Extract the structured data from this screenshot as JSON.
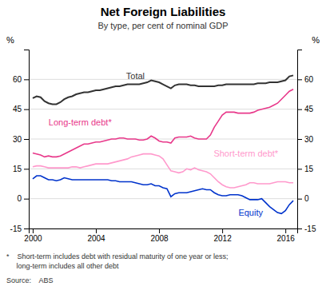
{
  "chart_data": {
    "type": "line",
    "title": "Net Foreign Liabilities",
    "subtitle": "By type, per cent of nominal GDP",
    "ylabel": "%",
    "y2label": "%",
    "notes": [
      "*    Short-term includes debt with residual maturity of one year or less;",
      "     long-term includes all other debt"
    ],
    "source": "Source:    ABS",
    "xlim": [
      1999.75,
      2016.75
    ],
    "xticks": [
      2000,
      2004,
      2008,
      2012,
      2016
    ],
    "ylim": [
      -15,
      75
    ],
    "yticks": [
      -15,
      0,
      15,
      30,
      45,
      60
    ],
    "y2lim": [
      -15,
      75
    ],
    "y2ticks": [
      -15,
      0,
      15,
      30,
      45,
      60
    ],
    "grid": true,
    "x": [
      2000.0,
      2000.25,
      2000.5,
      2000.75,
      2001.0,
      2001.25,
      2001.5,
      2001.75,
      2002.0,
      2002.25,
      2002.5,
      2002.75,
      2003.0,
      2003.25,
      2003.5,
      2003.75,
      2004.0,
      2004.25,
      2004.5,
      2004.75,
      2005.0,
      2005.25,
      2005.5,
      2005.75,
      2006.0,
      2006.25,
      2006.5,
      2006.75,
      2007.0,
      2007.25,
      2007.5,
      2007.75,
      2008.0,
      2008.25,
      2008.5,
      2008.75,
      2009.0,
      2009.25,
      2009.5,
      2009.75,
      2010.0,
      2010.25,
      2010.5,
      2010.75,
      2011.0,
      2011.25,
      2011.5,
      2011.75,
      2012.0,
      2012.25,
      2012.5,
      2012.75,
      2013.0,
      2013.25,
      2013.5,
      2013.75,
      2014.0,
      2014.25,
      2014.5,
      2014.75,
      2015.0,
      2015.25,
      2015.5,
      2015.75,
      2016.0,
      2016.25,
      2016.5
    ],
    "series": [
      {
        "name": "Total",
        "color": "#333333",
        "label_x": 2006.5,
        "label_y": 59.5,
        "values": [
          50.5,
          51.5,
          51.0,
          49.0,
          48.0,
          47.5,
          47.5,
          48.5,
          50.0,
          51.0,
          51.5,
          52.5,
          53.0,
          53.5,
          53.5,
          54.0,
          54.5,
          54.5,
          55.0,
          55.5,
          56.0,
          56.5,
          56.5,
          57.0,
          57.5,
          57.5,
          57.5,
          57.5,
          58.0,
          58.5,
          59.5,
          59.0,
          58.5,
          57.5,
          56.5,
          55.5,
          57.0,
          57.5,
          57.5,
          57.5,
          57.0,
          57.0,
          56.5,
          56.5,
          56.5,
          56.5,
          56.5,
          57.0,
          57.0,
          57.5,
          57.5,
          57.5,
          57.5,
          57.5,
          57.5,
          57.5,
          57.5,
          58.0,
          58.0,
          58.0,
          58.5,
          58.5,
          58.5,
          59.0,
          59.5,
          61.5,
          62.0
        ]
      },
      {
        "name": "Long-term debt*",
        "color": "#e8388a",
        "label_x": 2003.0,
        "label_y": 36.0,
        "values": [
          23.0,
          22.5,
          22.0,
          21.0,
          21.5,
          21.0,
          21.0,
          21.5,
          22.5,
          23.5,
          24.5,
          25.5,
          26.5,
          27.5,
          27.5,
          28.0,
          28.5,
          28.5,
          29.0,
          29.5,
          30.0,
          30.0,
          30.5,
          30.5,
          30.0,
          30.0,
          30.0,
          29.5,
          29.5,
          30.0,
          31.5,
          30.5,
          29.0,
          28.5,
          28.5,
          28.0,
          30.5,
          31.0,
          31.0,
          31.0,
          31.5,
          30.5,
          30.0,
          30.0,
          30.0,
          32.0,
          36.0,
          39.0,
          42.0,
          43.5,
          43.5,
          43.5,
          43.0,
          43.0,
          43.0,
          43.0,
          43.5,
          44.5,
          45.0,
          45.5,
          46.0,
          47.0,
          48.0,
          50.0,
          52.0,
          54.0,
          55.0
        ]
      },
      {
        "name": "Short-term debt*",
        "color": "#ff99cc",
        "label_x": 2013.5,
        "label_y": 20.5,
        "values": [
          16.0,
          16.5,
          16.5,
          16.0,
          15.5,
          15.5,
          15.5,
          15.5,
          15.5,
          15.5,
          16.0,
          16.0,
          15.5,
          16.0,
          16.5,
          17.0,
          17.5,
          17.5,
          17.5,
          17.5,
          18.0,
          18.5,
          19.0,
          19.5,
          20.0,
          21.0,
          21.5,
          22.0,
          22.5,
          22.5,
          22.5,
          22.0,
          21.5,
          20.0,
          17.0,
          14.0,
          13.5,
          13.0,
          13.5,
          15.0,
          14.5,
          15.5,
          14.5,
          14.0,
          13.5,
          12.5,
          10.5,
          8.5,
          7.0,
          6.0,
          5.5,
          5.5,
          6.0,
          6.5,
          7.0,
          8.0,
          8.0,
          7.5,
          7.5,
          7.5,
          7.5,
          8.0,
          8.5,
          8.5,
          8.5,
          8.0,
          8.0
        ]
      },
      {
        "name": "Equity",
        "color": "#0033cc",
        "label_x": 2013.8,
        "label_y": -9.5,
        "values": [
          10.0,
          11.5,
          11.5,
          10.5,
          9.5,
          9.5,
          9.0,
          9.5,
          10.5,
          10.0,
          9.5,
          9.5,
          9.5,
          9.5,
          9.5,
          9.5,
          9.5,
          9.5,
          9.5,
          9.5,
          9.0,
          9.0,
          8.5,
          8.5,
          8.5,
          8.5,
          8.0,
          7.5,
          7.0,
          7.0,
          7.5,
          6.5,
          6.5,
          5.5,
          5.0,
          1.0,
          2.5,
          3.0,
          3.0,
          3.0,
          3.5,
          4.0,
          4.5,
          5.0,
          4.5,
          4.5,
          3.0,
          2.0,
          1.5,
          1.5,
          2.0,
          2.0,
          2.0,
          1.5,
          0.5,
          -0.5,
          -0.5,
          -0.5,
          0.0,
          -2.0,
          -4.0,
          -5.5,
          -7.0,
          -7.5,
          -6.0,
          -3.0,
          -1.0
        ]
      }
    ]
  }
}
